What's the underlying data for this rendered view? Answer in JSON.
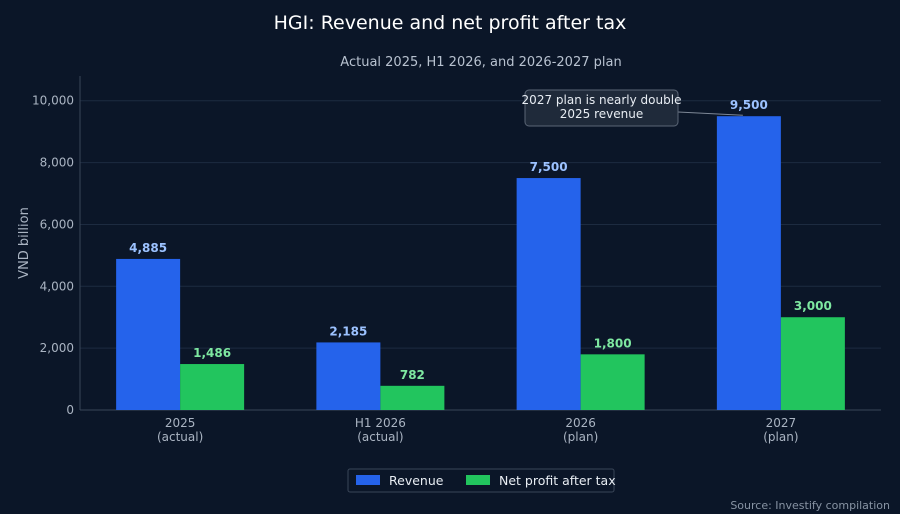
{
  "chart_data": {
    "type": "bar",
    "title": "HGI: Revenue and net profit after tax",
    "subtitle": "Actual 2025, H1 2026, and 2026-2027 plan",
    "ylabel": "VND billion",
    "ylim": [
      0,
      10800
    ],
    "yticks": [
      0,
      2000,
      4000,
      6000,
      8000,
      10000
    ],
    "ytick_labels": [
      "0",
      "2,000",
      "4,000",
      "6,000",
      "8,000",
      "10,000"
    ],
    "grid": true,
    "legend_position": "bottom-center",
    "categories": [
      {
        "line1": "2025",
        "line2": "(actual)"
      },
      {
        "line1": "H1 2026",
        "line2": "(actual)"
      },
      {
        "line1": "2026",
        "line2": "(plan)"
      },
      {
        "line1": "2027",
        "line2": "(plan)"
      }
    ],
    "series": [
      {
        "name": "Revenue",
        "color": "#2563eb",
        "values": [
          4885,
          2185,
          7500,
          9500
        ],
        "labels": [
          "4,885",
          "2,185",
          "7,500",
          "9,500"
        ]
      },
      {
        "name": "Net profit after tax",
        "color": "#22c55e",
        "values": [
          1486,
          782,
          1800,
          3000
        ],
        "labels": [
          "1,486",
          "782",
          "1,800",
          "3,000"
        ]
      }
    ],
    "annotation": {
      "lines": [
        "2027 plan is nearly double",
        "2025 revenue"
      ],
      "category_index": 3,
      "series_index": 0
    },
    "source": "Source: Investify compilation"
  }
}
